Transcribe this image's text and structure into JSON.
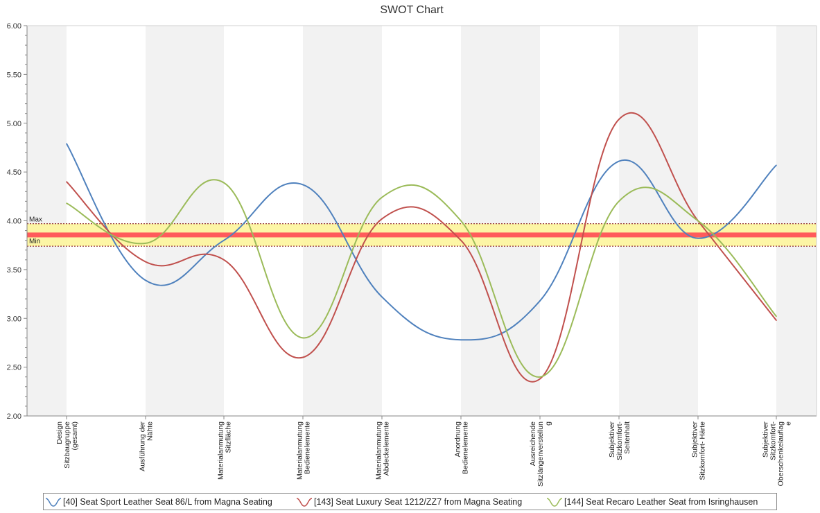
{
  "chart_data": {
    "type": "line",
    "title": "SWOT Chart",
    "xlabel": "",
    "ylabel": "",
    "ylim": [
      2.0,
      6.0
    ],
    "yticks": [
      "2.00",
      "2.50",
      "3.00",
      "3.50",
      "4.00",
      "4.50",
      "5.00",
      "5.50",
      "6.00"
    ],
    "categories": [
      [
        "Design",
        "Sitzbaugruppe",
        "(gesamt)"
      ],
      [
        "Ausführung der",
        "Nähte"
      ],
      [
        "Materialanmutung",
        "Sitzfläche"
      ],
      [
        "Materialanmutung",
        "Bedienelemente"
      ],
      [
        "Materialanmutung",
        "Abdeckelemente"
      ],
      [
        "Anordnung",
        "Bedienelemente"
      ],
      [
        "Ausreichende",
        "Sitzlängenverstellun",
        "g"
      ],
      [
        "Subjektiver",
        "Sitzkomfort-",
        "Seitenhalt"
      ],
      [
        "Subjektiver",
        "Sitzkomfort- Härte"
      ],
      [
        "Subjektiver",
        "Sitzkomfort-",
        "Oberschenkelauflag",
        "e"
      ]
    ],
    "series": [
      {
        "name": "[40] Seat Sport Leather Seat 86/L from Magna Seating",
        "color": "#4f81bd",
        "values": [
          4.79,
          3.39,
          3.8,
          4.37,
          3.22,
          2.78,
          3.18,
          4.61,
          3.82,
          4.57
        ]
      },
      {
        "name": "[143] Seat Luxury Seat 1212/ZZ7 from Magna Seating",
        "color": "#c0504d",
        "values": [
          4.4,
          3.58,
          3.6,
          2.6,
          4.02,
          3.8,
          2.38,
          5.04,
          4.0,
          2.98
        ]
      },
      {
        "name": "[144] Seat Recaro Leather Seat from Isringhausen",
        "color": "#9bbb59",
        "values": [
          4.18,
          3.77,
          4.39,
          2.8,
          4.24,
          4.0,
          2.4,
          4.2,
          4.0,
          3.02
        ]
      }
    ],
    "band": {
      "min": 3.74,
      "max": 3.97,
      "center": 3.855,
      "min_label": "Min",
      "max_label": "Max",
      "band_color": "#fdf59c",
      "line_color": "#ff5b5b",
      "border_color": "#7a0000"
    },
    "grid": true,
    "legend_position": "bottom"
  }
}
